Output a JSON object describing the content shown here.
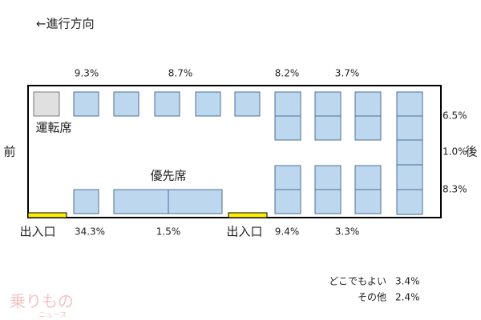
{
  "header": {
    "title": "←進行方向"
  },
  "labels": {
    "driver": "運転席",
    "priority": "優先席",
    "front": "前",
    "rear": "後",
    "door_front": "出入口",
    "door_middle": "出入口"
  },
  "top_row": [
    "9.3%",
    "8.7%",
    "8.2%",
    "3.7%"
  ],
  "right_column": [
    "6.5%",
    "1.0%",
    "8.3%"
  ],
  "bottom_row": [
    "34.3%",
    "1.5%",
    "9.4%",
    "3.3%"
  ],
  "other": [
    {
      "label": "どこでもよい",
      "value": "3.4%"
    },
    {
      "label": "その他",
      "value": "2.4%"
    }
  ],
  "logo": {
    "main": "乗りもの",
    "sub": "ニュース"
  }
}
